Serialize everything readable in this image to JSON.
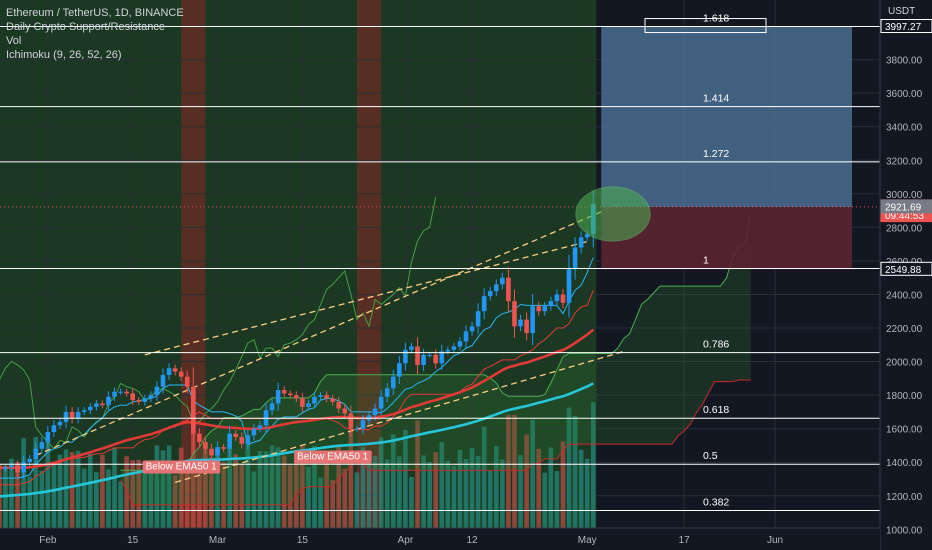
{
  "legend": {
    "symbol": "Ethereum / TetherUS, 1D, BINANCE",
    "ind1": "Daily Crypto Support/Resistance",
    "ind2": "Vol",
    "ind3": "Ichimoku (9, 26, 52, 26)"
  },
  "currency": "USDT",
  "colors": {
    "background": "#131722",
    "bull": "#2196f3",
    "bear": "#ef5350",
    "green_zone": "#1b3b23",
    "red_band": "#5e2e23",
    "ema": "#e53935",
    "cyan": "#26c6da",
    "profit": "#4a6d8f",
    "loss": "#5a2431"
  },
  "chart_data": {
    "type": "candlestick",
    "ylim": [
      1000,
      4000
    ],
    "y_ticks": [
      1000,
      1200,
      1400,
      1600,
      1800,
      2000,
      2200,
      2400,
      2600,
      2800,
      3000,
      3200,
      3400,
      3600,
      3800
    ],
    "y_tick_labels": [
      "1000.00",
      "1200.00",
      "1400.00",
      "1600.00",
      "1800.00",
      "2000.00",
      "2200.00",
      "2400.00",
      "2600.00",
      "2800.00",
      "3000.00",
      "3200.00",
      "3400.00",
      "3600.00",
      "3800.00"
    ],
    "x_ticks": [
      {
        "label": "Feb",
        "day": 31
      },
      {
        "label": "15",
        "day": 45
      },
      {
        "label": "Mar",
        "day": 59
      },
      {
        "label": "15",
        "day": 73
      },
      {
        "label": "Apr",
        "day": 90
      },
      {
        "label": "12",
        "day": 101
      },
      {
        "label": "May",
        "day": 120
      },
      {
        "label": "17",
        "day": 136
      },
      {
        "label": "Jun",
        "day": 151
      }
    ],
    "x_range": [
      25,
      157
    ],
    "last_data_day": 121,
    "fib_levels": [
      {
        "label": "1.618",
        "price": 3997
      },
      {
        "label": "1.414",
        "price": 3520
      },
      {
        "label": "1.272",
        "price": 3190
      },
      {
        "label": "1",
        "price": 2555
      },
      {
        "label": "0.786",
        "price": 2053
      },
      {
        "label": "0.618",
        "price": 1662
      },
      {
        "label": "0.5",
        "price": 1388
      },
      {
        "label": "0.382",
        "price": 1112
      }
    ],
    "price_labels": [
      {
        "text": "3997.27",
        "price": 3997.27,
        "style": "outline"
      },
      {
        "text": "2921.97",
        "price": 2921.97,
        "style": "red"
      },
      {
        "text": "09:44:53",
        "price": 2870,
        "style": "red-sub"
      },
      {
        "text": "2921.69",
        "price": 2921.69,
        "style": "gray"
      },
      {
        "text": "2549.88",
        "price": 2549.88,
        "style": "outline"
      }
    ],
    "annotations": [
      {
        "text": "Below EMA50 1",
        "day": 53,
        "price": 1380
      },
      {
        "text": "Below EMA50 1",
        "day": 78,
        "price": 1440
      }
    ],
    "closes": [
      1380,
      1320,
      1230,
      1290,
      1330,
      1370,
      1360,
      1370,
      1380,
      1340,
      1400,
      1420,
      1480,
      1520,
      1580,
      1620,
      1640,
      1700,
      1660,
      1700,
      1710,
      1730,
      1750,
      1740,
      1790,
      1820,
      1820,
      1810,
      1770,
      1760,
      1780,
      1800,
      1850,
      1920,
      1960,
      1940,
      1910,
      1850,
      1570,
      1520,
      1480,
      1440,
      1490,
      1480,
      1570,
      1550,
      1510,
      1560,
      1600,
      1620,
      1710,
      1750,
      1830,
      1810,
      1800,
      1780,
      1730,
      1750,
      1790,
      1800,
      1780,
      1760,
      1720,
      1690,
      1600,
      1600,
      1650,
      1680,
      1720,
      1790,
      1840,
      1910,
      1990,
      2070,
      2090,
      1980,
      2040,
      2040,
      1990,
      2060,
      2070,
      2090,
      2120,
      2180,
      2210,
      2300,
      2390,
      2420,
      2460,
      2500,
      2360,
      2210,
      2250,
      2170,
      2330,
      2300,
      2330,
      2360,
      2400,
      2350,
      2550,
      2680,
      2740,
      2760,
      2940
    ]
  }
}
